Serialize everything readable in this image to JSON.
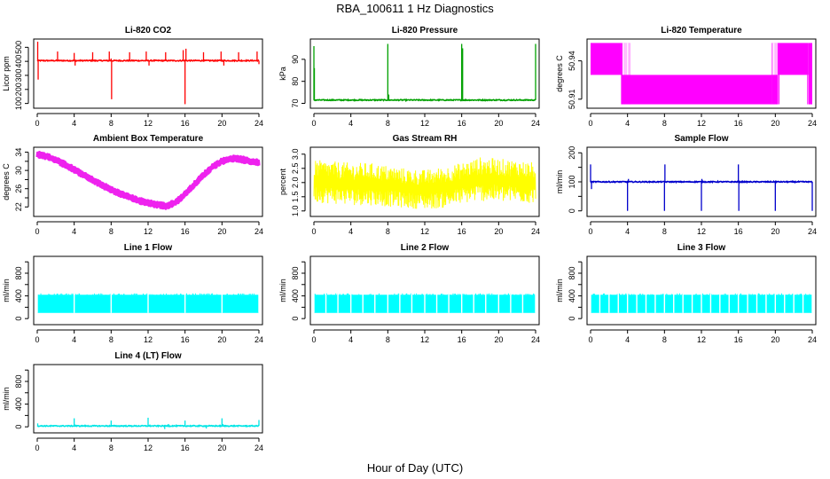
{
  "figure": {
    "title": "RBA_100611  1 Hz Diagnostics",
    "xlabel": "Hour of Day (UTC)"
  },
  "chart_data": [
    {
      "id": "co2",
      "type": "line",
      "title": "Li-820 CO2",
      "ylabel": "Licor ppm",
      "color": "#ff0000",
      "xlim": [
        0,
        24
      ],
      "ylim": [
        85,
        540
      ],
      "yticks": [
        100,
        200,
        300,
        400,
        500
      ],
      "xticks": [
        0,
        4,
        8,
        12,
        16,
        20,
        24
      ],
      "baseline": 405,
      "spikes": [
        [
          0.05,
          540
        ],
        [
          0.1,
          270
        ],
        [
          2.2,
          470
        ],
        [
          4.0,
          460
        ],
        [
          4.1,
          370
        ],
        [
          6.0,
          465
        ],
        [
          7.8,
          470
        ],
        [
          8.0,
          420
        ],
        [
          8.05,
          130
        ],
        [
          8.2,
          400
        ],
        [
          10.0,
          465
        ],
        [
          11.8,
          470
        ],
        [
          12.1,
          370
        ],
        [
          13.9,
          465
        ],
        [
          15.8,
          480
        ],
        [
          16.0,
          95
        ],
        [
          16.1,
          490
        ],
        [
          18.0,
          465
        ],
        [
          19.9,
          470
        ],
        [
          20.2,
          370
        ],
        [
          21.8,
          465
        ],
        [
          23.8,
          470
        ],
        [
          24.0,
          380
        ]
      ]
    },
    {
      "id": "pressure",
      "type": "line",
      "title": "Li-820 Pressure",
      "ylabel": "kPa",
      "color": "#00a000",
      "xlim": [
        0,
        24
      ],
      "ylim": [
        69,
        98
      ],
      "yticks": [
        70,
        80,
        90
      ],
      "xticks": [
        0,
        4,
        8,
        12,
        16,
        20,
        24
      ],
      "baseline": 71.5,
      "spikes": [
        [
          0.0,
          96
        ],
        [
          0.05,
          86
        ],
        [
          4.0,
          71.8
        ],
        [
          8.0,
          97
        ],
        [
          8.1,
          74
        ],
        [
          12.0,
          71.9
        ],
        [
          16.0,
          97
        ],
        [
          16.1,
          95
        ],
        [
          20.0,
          71.9
        ],
        [
          24.0,
          97
        ]
      ]
    },
    {
      "id": "licor_temp",
      "type": "line",
      "title": "Li-820 Temperature",
      "ylabel": "degrees C",
      "color": "#ff00ff",
      "xlim": [
        0,
        24
      ],
      "ylim": [
        50.905,
        50.955
      ],
      "yticks": [
        50.91,
        50.94
      ],
      "yticklabels": [
        "50.91",
        "50.94"
      ],
      "xticks": [
        0,
        4,
        8,
        12,
        16,
        20,
        24
      ],
      "levels": [
        50.906,
        50.929,
        50.954
      ],
      "segments": [
        [
          0,
          3.3,
          50.929,
          50.954
        ],
        [
          3.3,
          4.3,
          50.906,
          50.954
        ],
        [
          4.3,
          19.6,
          50.906,
          50.929
        ],
        [
          19.6,
          20.3,
          50.906,
          50.954
        ],
        [
          20.3,
          23.6,
          50.929,
          50.954
        ],
        [
          23.6,
          24,
          50.906,
          50.954
        ]
      ]
    },
    {
      "id": "ambient",
      "type": "line",
      "title": "Ambient Box Temperature",
      "ylabel": "degrees C",
      "color": "#ee22ee",
      "xlim": [
        0,
        24
      ],
      "ylim": [
        20.5,
        34.5
      ],
      "yticks": [
        22,
        24,
        26,
        28,
        30,
        32,
        34
      ],
      "yticklabels": [
        "22",
        "",
        "26",
        "",
        "30",
        "",
        "34"
      ],
      "xticks": [
        0,
        4,
        8,
        12,
        16,
        20,
        24
      ],
      "x": [
        0,
        1,
        2,
        3,
        4,
        5,
        6,
        7,
        8,
        9,
        10,
        11,
        12,
        13,
        14,
        15,
        16,
        17,
        18,
        19,
        20,
        21,
        22,
        23,
        24
      ],
      "values": [
        33.5,
        33.1,
        32.3,
        31.3,
        30.2,
        29.0,
        27.9,
        26.8,
        25.8,
        24.9,
        24.1,
        23.4,
        22.9,
        22.5,
        22.2,
        23.0,
        24.8,
        26.9,
        29.0,
        30.8,
        32.0,
        32.6,
        32.5,
        32.0,
        31.7
      ],
      "band": 0.6
    },
    {
      "id": "rh",
      "type": "area",
      "title": "Gas Stream RH",
      "ylabel": "percent",
      "color": "#ffff00",
      "xlim": [
        0,
        24
      ],
      "ylim": [
        0.9,
        3.15
      ],
      "yticks": [
        1.0,
        1.5,
        2.0,
        2.5,
        3.0
      ],
      "yticklabels": [
        "1.0",
        "1.5",
        "2.0",
        "2.5",
        "3.0"
      ],
      "xticks": [
        0,
        4,
        8,
        12,
        16,
        20,
        24
      ],
      "x": [
        0,
        2,
        4,
        6,
        8,
        10,
        12,
        14,
        16,
        18,
        20,
        22,
        24
      ],
      "upper": [
        2.8,
        2.75,
        2.7,
        2.7,
        2.6,
        2.5,
        2.45,
        2.55,
        2.7,
        2.9,
        2.85,
        2.8,
        2.7
      ],
      "lower": [
        1.3,
        1.25,
        1.2,
        1.2,
        1.15,
        1.1,
        1.05,
        1.1,
        1.25,
        1.35,
        1.3,
        1.3,
        1.25
      ]
    },
    {
      "id": "sample_flow",
      "type": "line",
      "title": "Sample Flow",
      "ylabel": "ml/min",
      "color": "#0000cc",
      "xlim": [
        0,
        24
      ],
      "ylim": [
        -10,
        210
      ],
      "yticks": [
        0,
        50,
        100,
        150,
        200
      ],
      "yticklabels": [
        "0",
        "",
        "100",
        "",
        "200"
      ],
      "xticks": [
        0,
        4,
        8,
        12,
        16,
        20,
        24
      ],
      "baseline": 100,
      "spikes": [
        [
          0.0,
          160
        ],
        [
          0.1,
          75
        ],
        [
          3.95,
          100
        ],
        [
          4.0,
          0
        ],
        [
          4.1,
          110
        ],
        [
          7.95,
          100
        ],
        [
          8.0,
          0
        ],
        [
          8.05,
          160
        ],
        [
          11.95,
          100
        ],
        [
          12.0,
          0
        ],
        [
          12.05,
          110
        ],
        [
          15.95,
          100
        ],
        [
          16.0,
          160
        ],
        [
          16.05,
          0
        ],
        [
          19.95,
          100
        ],
        [
          20.0,
          0
        ],
        [
          20.05,
          105
        ],
        [
          23.95,
          100
        ],
        [
          24.0,
          0
        ]
      ]
    },
    {
      "id": "line1",
      "type": "area",
      "title": "Line 1 Flow",
      "ylabel": "ml/min",
      "color": "#00ffff",
      "xlim": [
        0,
        24
      ],
      "ylim": [
        -60,
        1050
      ],
      "yticks": [
        0,
        200,
        400,
        600,
        800,
        1000
      ],
      "yticklabels": [
        "0",
        "",
        "400",
        "",
        "800",
        ""
      ],
      "xticks": [
        0,
        4,
        8,
        12,
        16,
        20,
        24
      ],
      "upper": 420,
      "lower": 100,
      "gaps": [
        0.0,
        4.0,
        8.0,
        12.0,
        16.0,
        20.0,
        24.0
      ]
    },
    {
      "id": "line2",
      "type": "area",
      "title": "Line 2 Flow",
      "ylabel": "ml/min",
      "color": "#00ffff",
      "xlim": [
        0,
        24
      ],
      "ylim": [
        -60,
        1050
      ],
      "yticks": [
        0,
        200,
        400,
        600,
        800,
        1000
      ],
      "yticklabels": [
        "0",
        "",
        "400",
        "",
        "800",
        ""
      ],
      "xticks": [
        0,
        4,
        8,
        12,
        16,
        20,
        24
      ],
      "upper": 420,
      "lower": 100,
      "gaps": [
        0.0,
        1.3,
        2.6,
        4.0,
        5.3,
        6.6,
        8.0,
        9.3,
        10.6,
        12.0,
        13.3,
        14.6,
        16.0,
        17.3,
        18.6,
        20.0,
        21.3,
        22.6,
        24.0
      ]
    },
    {
      "id": "line3",
      "type": "area",
      "title": "Line 3 Flow",
      "ylabel": "ml/min",
      "color": "#00ffff",
      "xlim": [
        0,
        24
      ],
      "ylim": [
        -60,
        1050
      ],
      "yticks": [
        0,
        200,
        400,
        600,
        800,
        1000
      ],
      "yticklabels": [
        "0",
        "",
        "400",
        "",
        "800",
        ""
      ],
      "xticks": [
        0,
        4,
        8,
        12,
        16,
        20,
        24
      ],
      "upper": 420,
      "lower": 100,
      "gaps": [
        0.0,
        1.0,
        2.0,
        3.0,
        4.0,
        5.0,
        6.0,
        7.0,
        8.0,
        9.0,
        10.0,
        11.0,
        12.0,
        13.0,
        14.0,
        15.0,
        16.0,
        17.0,
        18.0,
        19.0,
        20.0,
        21.0,
        22.0,
        23.0,
        24.0
      ]
    },
    {
      "id": "line4",
      "type": "line",
      "title": "Line 4 (LT) Flow",
      "ylabel": "ml/min",
      "color": "#00e5e5",
      "xlim": [
        0,
        24
      ],
      "ylim": [
        -60,
        1050
      ],
      "yticks": [
        0,
        200,
        400,
        600,
        800,
        1000
      ],
      "yticklabels": [
        "0",
        "",
        "400",
        "",
        "800",
        ""
      ],
      "xticks": [
        0,
        4,
        8,
        12,
        16,
        20,
        24
      ],
      "baseline": 15,
      "spikes": [
        [
          0.05,
          60
        ],
        [
          4.0,
          150
        ],
        [
          4.1,
          40
        ],
        [
          8.0,
          110
        ],
        [
          12.0,
          160
        ],
        [
          12.2,
          40
        ],
        [
          13.8,
          -40
        ],
        [
          14.2,
          50
        ],
        [
          16.0,
          110
        ],
        [
          18.3,
          -30
        ],
        [
          20.0,
          150
        ],
        [
          20.1,
          50
        ],
        [
          24.0,
          120
        ]
      ]
    }
  ]
}
